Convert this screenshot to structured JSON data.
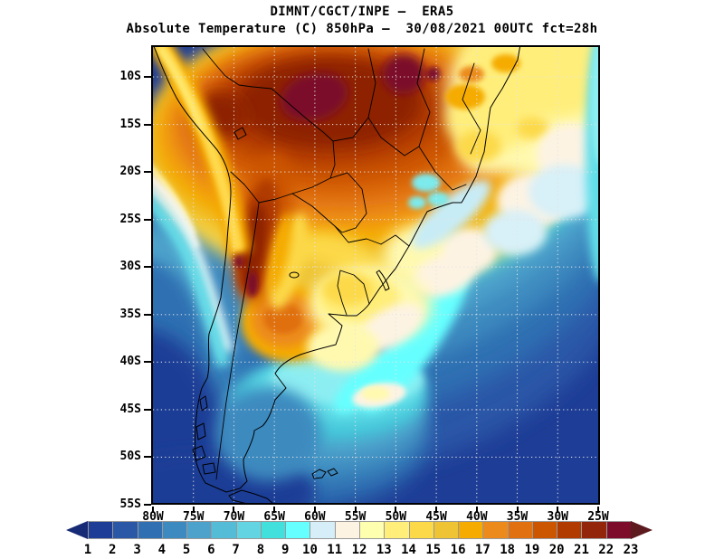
{
  "header": {
    "line1": "DIMNT/CGCT/INPE —  ERA5",
    "line2": "Absolute Temperature (C) 850hPa —  30/08/2021 00UTC fct=28h"
  },
  "map": {
    "lat_ticks": [
      "10S",
      "15S",
      "20S",
      "25S",
      "30S",
      "35S",
      "40S",
      "45S",
      "50S",
      "55S"
    ],
    "lon_ticks": [
      "80W",
      "75W",
      "70W",
      "65W",
      "60W",
      "55W",
      "50W",
      "45W",
      "40W",
      "35W",
      "30W",
      "25W"
    ],
    "gridline_color": "#e3e3e3",
    "coastline_color": "#000000"
  },
  "colorbar": {
    "labels": [
      "1",
      "2",
      "3",
      "4",
      "5",
      "6",
      "7",
      "8",
      "9",
      "10",
      "11",
      "12",
      "13",
      "14",
      "15",
      "16",
      "17",
      "18",
      "19",
      "20",
      "21",
      "22",
      "23"
    ],
    "cell_colors": [
      "#1e3d96",
      "#2b57a7",
      "#2f6fb2",
      "#3c8abf",
      "#4da2cb",
      "#55bcd8",
      "#62d4e2",
      "#41e0dd",
      "#66ffff",
      "#d5eef8",
      "#fdf3e3",
      "#ffffb0",
      "#ffee7a",
      "#fcd949",
      "#eec435",
      "#f5ab00",
      "#ec8b1c",
      "#e07010",
      "#cc5500",
      "#b03a00",
      "#93260a",
      "#7c0c2a"
    ],
    "left_arrow_color": "#172a75",
    "right_arrow_color": "#5c1a1f",
    "border_color": "#999999"
  }
}
